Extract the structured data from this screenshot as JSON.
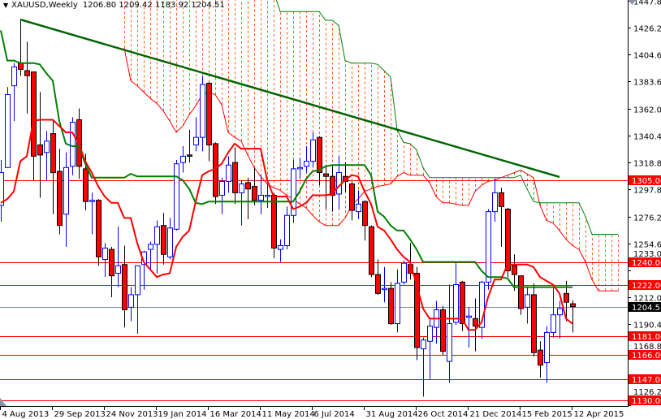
{
  "header": {
    "menu_icon": "triangle-down-icon",
    "symbol": "XAUUSD,Weekly",
    "ohlc": "1206.80 1209.42 1183.92 1204.51"
  },
  "chart_data": {
    "type": "candlestick",
    "symbol": "XAUUSD",
    "period": "Weekly",
    "ylim": [
      1126.2,
      1447.8
    ],
    "grid": false,
    "y_ticks": [
      "1447.80",
      "1426.20",
      "1404.60",
      "1383.60",
      "1362.00",
      "1340.40",
      "1318.80",
      "1297.80",
      "1276.20",
      "1254.60",
      "1233.00",
      "1212.00",
      "1190.40",
      "1168.80",
      "1126.20"
    ],
    "x_ticks": [
      "4 Aug 2013",
      "29 Sep 2013",
      "24 Nov 2013",
      "19 Jan 2014",
      "16 Mar 2014",
      "11 May 2014",
      "6 Jul 2014",
      "31 Aug 2014",
      "26 Oct 2014",
      "21 Dec 2014",
      "15 Feb 2015",
      "12 Apr 2015"
    ],
    "colors": {
      "bull": "#0000ff",
      "bear": "#ff0000",
      "tenkan": "#ff0000",
      "kijun": "#008000",
      "trendline": "#006400",
      "cloud_bear": "#ff5a1e",
      "cloud_bull": "#1f9a1f",
      "level": "#ff0000",
      "current": "#778899"
    },
    "candle_fields": [
      "date",
      "open",
      "high",
      "low",
      "close"
    ],
    "candles": [
      [
        "2013-08-04",
        1285,
        1321,
        1272,
        1311
      ],
      [
        "2013-08-11",
        1315,
        1379,
        1315,
        1373
      ],
      [
        "2013-08-18",
        1380,
        1398,
        1352,
        1395
      ],
      [
        "2013-08-25",
        1398,
        1433,
        1388,
        1393
      ],
      [
        "2013-09-01",
        1392,
        1415,
        1358,
        1388
      ],
      [
        "2013-09-08",
        1391,
        1391,
        1305,
        1324
      ],
      [
        "2013-09-15",
        1333,
        1375,
        1291,
        1325
      ],
      [
        "2013-09-22",
        1327,
        1344,
        1305,
        1336
      ],
      [
        "2013-09-29",
        1342,
        1352,
        1278,
        1311
      ],
      [
        "2013-10-06",
        1312,
        1330,
        1262,
        1269
      ],
      [
        "2013-10-13",
        1278,
        1327,
        1252,
        1315
      ],
      [
        "2013-10-20",
        1316,
        1355,
        1309,
        1351
      ],
      [
        "2013-10-27",
        1353,
        1362,
        1306,
        1316
      ],
      [
        "2013-11-03",
        1314,
        1326,
        1281,
        1288
      ],
      [
        "2013-11-10",
        1288,
        1295,
        1262,
        1289
      ],
      [
        "2013-11-17",
        1289,
        1290,
        1237,
        1244
      ],
      [
        "2013-11-24",
        1242,
        1255,
        1228,
        1251
      ],
      [
        "2013-12-01",
        1250,
        1252,
        1212,
        1229
      ],
      [
        "2013-12-08",
        1231,
        1268,
        1220,
        1237
      ],
      [
        "2013-12-15",
        1238,
        1253,
        1188,
        1202
      ],
      [
        "2013-12-22",
        1204,
        1220,
        1193,
        1214
      ],
      [
        "2013-12-29",
        1214,
        1237,
        1183,
        1237
      ],
      [
        "2014-01-05",
        1238,
        1249,
        1218,
        1248
      ],
      [
        "2014-01-12",
        1250,
        1256,
        1234,
        1254
      ],
      [
        "2014-01-19",
        1254,
        1273,
        1231,
        1268
      ],
      [
        "2014-01-26",
        1269,
        1279,
        1238,
        1246
      ],
      [
        "2014-02-02",
        1244,
        1275,
        1242,
        1267
      ],
      [
        "2014-02-09",
        1266,
        1321,
        1265,
        1318
      ],
      [
        "2014-02-16",
        1319,
        1332,
        1311,
        1324
      ],
      [
        "2014-02-23",
        1325,
        1345,
        1319,
        1324
      ],
      [
        "2014-03-02",
        1333,
        1355,
        1328,
        1339
      ],
      [
        "2014-03-09",
        1339,
        1388,
        1328,
        1381
      ],
      [
        "2014-03-16",
        1382,
        1383,
        1320,
        1333
      ],
      [
        "2014-03-23",
        1334,
        1335,
        1286,
        1292
      ],
      [
        "2014-03-30",
        1293,
        1307,
        1278,
        1304
      ],
      [
        "2014-04-06",
        1304,
        1324,
        1295,
        1317
      ],
      [
        "2014-04-13",
        1319,
        1331,
        1286,
        1295
      ],
      [
        "2014-04-20",
        1295,
        1305,
        1269,
        1302
      ],
      [
        "2014-04-27",
        1303,
        1307,
        1274,
        1298
      ],
      [
        "2014-05-04",
        1300,
        1315,
        1285,
        1289
      ],
      [
        "2014-05-11",
        1289,
        1309,
        1278,
        1293
      ],
      [
        "2014-05-18",
        1292,
        1302,
        1283,
        1293
      ],
      [
        "2014-05-25",
        1293,
        1295,
        1243,
        1251
      ],
      [
        "2014-06-01",
        1250,
        1258,
        1240,
        1253
      ],
      [
        "2014-06-08",
        1253,
        1284,
        1250,
        1277
      ],
      [
        "2014-06-15",
        1277,
        1321,
        1271,
        1314
      ],
      [
        "2014-06-22",
        1314,
        1323,
        1306,
        1315
      ],
      [
        "2014-06-29",
        1316,
        1332,
        1311,
        1320
      ],
      [
        "2014-07-06",
        1320,
        1343,
        1315,
        1337
      ],
      [
        "2014-07-13",
        1339,
        1340,
        1301,
        1311
      ],
      [
        "2014-07-20",
        1310,
        1317,
        1282,
        1308
      ],
      [
        "2014-07-27",
        1308,
        1317,
        1280,
        1293
      ],
      [
        "2014-08-03",
        1294,
        1324,
        1282,
        1311
      ],
      [
        "2014-08-10",
        1308,
        1319,
        1296,
        1304
      ],
      [
        "2014-08-17",
        1302,
        1304,
        1273,
        1281
      ],
      [
        "2014-08-24",
        1280,
        1297,
        1274,
        1286
      ],
      [
        "2014-08-31",
        1288,
        1289,
        1257,
        1269
      ],
      [
        "2014-09-07",
        1268,
        1269,
        1228,
        1230
      ],
      [
        "2014-09-14",
        1230,
        1242,
        1214,
        1215
      ],
      [
        "2014-09-21",
        1218,
        1236,
        1208,
        1219
      ],
      [
        "2014-09-28",
        1219,
        1224,
        1190,
        1191
      ],
      [
        "2014-10-05",
        1191,
        1234,
        1184,
        1223
      ],
      [
        "2014-10-12",
        1224,
        1241,
        1222,
        1239
      ],
      [
        "2014-10-19",
        1238,
        1255,
        1226,
        1231
      ],
      [
        "2014-10-26",
        1231,
        1236,
        1162,
        1172
      ],
      [
        "2014-11-02",
        1171,
        1180,
        1133,
        1178
      ],
      [
        "2014-11-09",
        1177,
        1195,
        1147,
        1189
      ],
      [
        "2014-11-16",
        1188,
        1209,
        1175,
        1202
      ],
      [
        "2014-11-23",
        1202,
        1205,
        1166,
        1169
      ],
      [
        "2014-11-30",
        1161,
        1222,
        1144,
        1191
      ],
      [
        "2014-12-07",
        1192,
        1239,
        1190,
        1222
      ],
      [
        "2014-12-14",
        1224,
        1225,
        1185,
        1191
      ],
      [
        "2014-12-21",
        1196,
        1204,
        1172,
        1197
      ],
      [
        "2014-12-28",
        1195,
        1211,
        1169,
        1189
      ],
      [
        "2015-01-04",
        1188,
        1225,
        1179,
        1224
      ],
      [
        "2015-01-11",
        1224,
        1282,
        1218,
        1280
      ],
      [
        "2015-01-18",
        1280,
        1306,
        1272,
        1295
      ],
      [
        "2015-01-25",
        1295,
        1299,
        1252,
        1284
      ],
      [
        "2015-02-01",
        1282,
        1283,
        1228,
        1233
      ],
      [
        "2015-02-08",
        1237,
        1246,
        1217,
        1230
      ],
      [
        "2015-02-15",
        1229,
        1229,
        1198,
        1203
      ],
      [
        "2015-02-22",
        1204,
        1220,
        1191,
        1214
      ],
      [
        "2015-03-01",
        1214,
        1223,
        1165,
        1168
      ],
      [
        "2015-03-08",
        1170,
        1177,
        1148,
        1158
      ],
      [
        "2015-03-15",
        1160,
        1189,
        1144,
        1184
      ],
      [
        "2015-03-22",
        1184,
        1220,
        1180,
        1198
      ],
      [
        "2015-03-29",
        1198,
        1209,
        1179,
        1203
      ],
      [
        "2015-04-05",
        1215,
        1225,
        1193,
        1208
      ],
      [
        "2015-04-12",
        1206.8,
        1209.42,
        1183.92,
        1204.51
      ]
    ],
    "tenkan": [
      1287,
      1290,
      1296,
      1320,
      1324,
      1352,
      1353,
      1353,
      1353,
      1348,
      1343,
      1343,
      1334,
      1320,
      1311,
      1300,
      1292,
      1287,
      1287,
      1275,
      1275,
      1255,
      1240,
      1234,
      1228,
      1230,
      1231,
      1252,
      1260,
      1265,
      1288,
      1309,
      1312,
      1314,
      1318,
      1327,
      1334,
      1330,
      1330,
      1330,
      1330,
      1305,
      1292,
      1292,
      1292,
      1282,
      1284,
      1287,
      1293,
      1293,
      1293,
      1294,
      1300,
      1305,
      1309,
      1308,
      1296,
      1286,
      1268,
      1265,
      1258,
      1250,
      1244,
      1240,
      1222,
      1203,
      1195,
      1195,
      1195,
      1195,
      1195,
      1195,
      1186,
      1186,
      1192,
      1212,
      1226,
      1226,
      1238,
      1238,
      1238,
      1238,
      1236,
      1228,
      1225,
      1222,
      1215,
      1195,
      1191
    ],
    "kijun": [
      1424,
      1400,
      1400,
      1398,
      1398,
      1398,
      1397,
      1390,
      1384,
      1352,
      1334,
      1332,
      1332,
      1318,
      1307,
      1307,
      1307,
      1307,
      1307,
      1307,
      1310,
      1308,
      1308,
      1308,
      1308,
      1308,
      1308,
      1308,
      1305,
      1298,
      1287,
      1286,
      1288,
      1288,
      1288,
      1288,
      1288,
      1288,
      1288,
      1288,
      1288,
      1288,
      1288,
      1288,
      1288,
      1288,
      1296,
      1306,
      1312,
      1313,
      1316,
      1317,
      1317,
      1317,
      1317,
      1317,
      1317,
      1309,
      1280,
      1276,
      1269,
      1265,
      1265,
      1258,
      1250,
      1240,
      1240,
      1240,
      1240,
      1240,
      1240,
      1240,
      1240,
      1240,
      1233,
      1228,
      1228,
      1228,
      1227,
      1220,
      1220,
      1220,
      1220,
      1220,
      1220,
      1220,
      1220,
      1220,
      1220
    ],
    "cloud": {
      "start": "2013-12-15",
      "span_a": [
        1410,
        1384,
        1380,
        1375,
        1370,
        1366,
        1360,
        1352,
        1343,
        1348,
        1357,
        1364,
        1373,
        1375,
        1373,
        1365,
        1343,
        1339,
        1336,
        1325,
        1315,
        1308,
        1302,
        1299,
        1297,
        1293,
        1290,
        1286,
        1283,
        1277,
        1272,
        1269,
        1269,
        1269,
        1275,
        1285,
        1290,
        1296,
        1298,
        1300,
        1301,
        1302,
        1308,
        1311,
        1309,
        1309,
        1309,
        1303,
        1292,
        1287,
        1287,
        1286,
        1285,
        1285,
        1296,
        1301,
        1304,
        1305,
        1307,
        1309,
        1311,
        1313,
        1310,
        1307,
        1285,
        1273,
        1271,
        1265,
        1258,
        1253,
        1250,
        1240,
        1226,
        1217,
        1217,
        1217,
        1217
      ],
      "span_b": [
        1455,
        1455,
        1455,
        1455,
        1455,
        1455,
        1455,
        1455,
        1455,
        1455,
        1455,
        1455,
        1455,
        1455,
        1455,
        1455,
        1455,
        1455,
        1455,
        1455,
        1455,
        1455,
        1455,
        1455,
        1439,
        1439,
        1439,
        1439,
        1439,
        1439,
        1439,
        1432,
        1432,
        1428,
        1400,
        1398,
        1398,
        1398,
        1398,
        1397,
        1392,
        1387,
        1345,
        1335,
        1334,
        1329,
        1315,
        1307,
        1307,
        1307,
        1307,
        1307,
        1307,
        1307,
        1307,
        1307,
        1307,
        1307,
        1307,
        1307,
        1307,
        1309,
        1298,
        1288,
        1287,
        1287,
        1287,
        1287,
        1287,
        1287,
        1287,
        1276,
        1262,
        1262,
        1262,
        1262,
        1262
      ]
    },
    "trendline": {
      "from": [
        "2013-08-25",
        1432.6
      ],
      "to": [
        "2015-03-29",
        1307.5
      ]
    },
    "levels": [
      {
        "price": 1305,
        "label": "1305.00"
      },
      {
        "price": 1240,
        "label": "1240.00"
      },
      {
        "price": 1222,
        "label": "1222.00"
      },
      {
        "price": 1181,
        "label": "1181.00"
      },
      {
        "price": 1166,
        "label": "1166.00"
      },
      {
        "price": 1147,
        "label": "1147.00"
      },
      {
        "price": 1130,
        "label": "1130.00"
      }
    ],
    "current": {
      "price": 1204.51,
      "label": "1204.51"
    }
  }
}
